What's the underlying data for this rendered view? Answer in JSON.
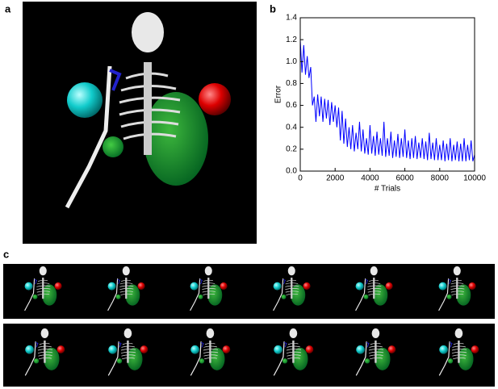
{
  "panels": [
    "a",
    "b",
    "c"
  ],
  "chart_data": {
    "type": "line",
    "xlabel": "# Trials",
    "ylabel": "Error",
    "xlim": [
      0,
      10000
    ],
    "ylim": [
      0,
      1.4
    ],
    "xticks": [
      0,
      2000,
      4000,
      6000,
      8000,
      10000
    ],
    "yticks": [
      {
        "value": 0,
        "label": "0.0"
      },
      {
        "value": 0.2,
        "label": "0.2"
      },
      {
        "value": 0.4,
        "label": "0.4"
      },
      {
        "value": 0.6,
        "label": "0.6"
      },
      {
        "value": 0.8,
        "label": "0.8"
      },
      {
        "value": 1,
        "label": "1.0"
      },
      {
        "value": 1.2,
        "label": "1.2"
      },
      {
        "value": 1.4,
        "label": "1.4"
      }
    ],
    "x": [
      0,
      100,
      200,
      300,
      400,
      500,
      600,
      700,
      800,
      900,
      1000,
      1100,
      1200,
      1300,
      1400,
      1500,
      1600,
      1700,
      1800,
      1900,
      2000,
      2100,
      2200,
      2300,
      2400,
      2500,
      2600,
      2700,
      2800,
      2900,
      3000,
      3100,
      3200,
      3300,
      3400,
      3500,
      3600,
      3700,
      3800,
      3900,
      4000,
      4100,
      4200,
      4300,
      4400,
      4500,
      4600,
      4700,
      4800,
      4900,
      5000,
      5100,
      5200,
      5300,
      5400,
      5500,
      5600,
      5700,
      5800,
      5900,
      6000,
      6100,
      6200,
      6300,
      6400,
      6500,
      6600,
      6700,
      6800,
      6900,
      7000,
      7100,
      7200,
      7300,
      7400,
      7500,
      7600,
      7700,
      7800,
      7900,
      8000,
      8100,
      8200,
      8300,
      8400,
      8500,
      8600,
      8700,
      8800,
      8900,
      9000,
      9100,
      9200,
      9300,
      9400,
      9500,
      9600,
      9700,
      9800,
      9900,
      10000
    ],
    "series": [
      {
        "color": "#0000ff",
        "values": [
          1.2,
          0.9,
          1.15,
          0.88,
          1.05,
          0.85,
          0.95,
          0.6,
          0.68,
          0.45,
          0.7,
          0.5,
          0.68,
          0.45,
          0.66,
          0.48,
          0.65,
          0.42,
          0.63,
          0.45,
          0.6,
          0.4,
          0.58,
          0.28,
          0.55,
          0.25,
          0.48,
          0.22,
          0.4,
          0.2,
          0.42,
          0.18,
          0.35,
          0.2,
          0.45,
          0.18,
          0.38,
          0.16,
          0.3,
          0.15,
          0.42,
          0.16,
          0.32,
          0.14,
          0.36,
          0.15,
          0.3,
          0.14,
          0.45,
          0.13,
          0.3,
          0.14,
          0.36,
          0.12,
          0.28,
          0.13,
          0.34,
          0.12,
          0.3,
          0.13,
          0.38,
          0.12,
          0.28,
          0.11,
          0.3,
          0.12,
          0.32,
          0.11,
          0.26,
          0.12,
          0.3,
          0.11,
          0.27,
          0.1,
          0.35,
          0.11,
          0.26,
          0.1,
          0.3,
          0.1,
          0.24,
          0.1,
          0.28,
          0.09,
          0.25,
          0.1,
          0.3,
          0.09,
          0.24,
          0.1,
          0.27,
          0.09,
          0.25,
          0.09,
          0.3,
          0.09,
          0.24,
          0.1,
          0.28,
          0.09,
          0.15
        ]
      }
    ]
  }
}
